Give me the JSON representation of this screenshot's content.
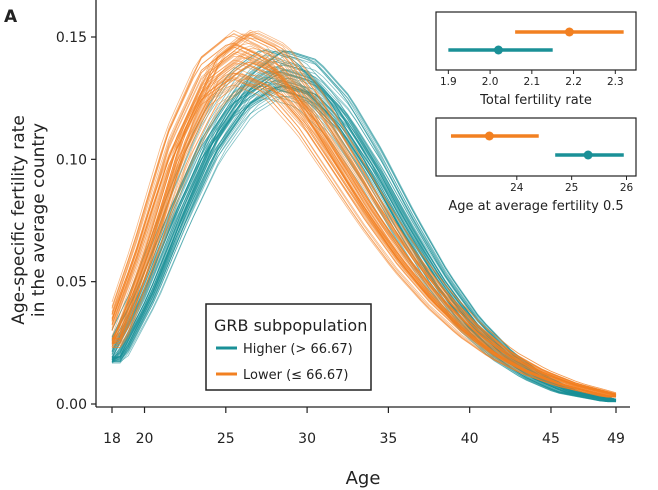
{
  "panel_label": "A",
  "colors": {
    "higher": "#1a9097",
    "lower": "#f28021"
  },
  "chart_data": [
    {
      "type": "line",
      "title": "",
      "xlabel": "Age",
      "ylabel": "Age-specific fertility rate\nin the average country",
      "xlim": [
        18,
        49
      ],
      "ylim": [
        0,
        0.15
      ],
      "xticks": [
        18,
        20,
        25,
        30,
        35,
        40,
        45,
        49
      ],
      "yticks": [
        "0.00",
        "0.05",
        "0.10",
        "0.15"
      ],
      "grid": false,
      "legend": {
        "title": "GRB subpopulation",
        "placement": "bottom-center",
        "entries": [
          "Higher (> 66.67)",
          "Lower (≤ 66.67)"
        ]
      },
      "series": [
        {
          "name": "Higher (> 66.67)",
          "color": "#1a9097",
          "curve_count": 60,
          "x": [
            18,
            20,
            22,
            24,
            26,
            28,
            30,
            32,
            34,
            36,
            38,
            40,
            42,
            44,
            46,
            49
          ],
          "values": [
            0.018,
            0.044,
            0.077,
            0.107,
            0.127,
            0.136,
            0.132,
            0.118,
            0.097,
            0.073,
            0.051,
            0.033,
            0.02,
            0.011,
            0.005,
            0.001
          ]
        },
        {
          "name": "Lower (≤ 66.67)",
          "color": "#f28021",
          "curve_count": 60,
          "x": [
            18,
            20,
            22,
            24,
            26,
            28,
            30,
            32,
            34,
            36,
            38,
            40,
            42,
            44,
            46,
            49
          ],
          "values": [
            0.025,
            0.062,
            0.104,
            0.132,
            0.142,
            0.136,
            0.12,
            0.099,
            0.078,
            0.059,
            0.043,
            0.03,
            0.02,
            0.013,
            0.008,
            0.003
          ]
        }
      ]
    },
    {
      "type": "scatter",
      "title": "",
      "xlabel": "Total fertility rate",
      "xlim": [
        1.88,
        2.34
      ],
      "xticks": [
        "1.9",
        "2.0",
        "2.1",
        "2.2",
        "2.3"
      ],
      "series": [
        {
          "name": "Lower (≤ 66.67)",
          "color": "#f28021",
          "estimate": 2.19,
          "interval": [
            2.06,
            2.32
          ]
        },
        {
          "name": "Higher (> 66.67)",
          "color": "#1a9097",
          "estimate": 2.02,
          "interval": [
            1.9,
            2.15
          ]
        }
      ]
    },
    {
      "type": "scatter",
      "title": "",
      "xlabel": "Age at average fertility 0.5",
      "xlim": [
        22.6,
        26.1
      ],
      "xticks": [
        "24",
        "25",
        "26"
      ],
      "series": [
        {
          "name": "Lower (≤ 66.67)",
          "color": "#f28021",
          "estimate": 23.5,
          "interval": [
            22.8,
            24.4
          ]
        },
        {
          "name": "Higher (> 66.67)",
          "color": "#1a9097",
          "estimate": 25.3,
          "interval": [
            24.7,
            25.95
          ]
        }
      ]
    }
  ]
}
